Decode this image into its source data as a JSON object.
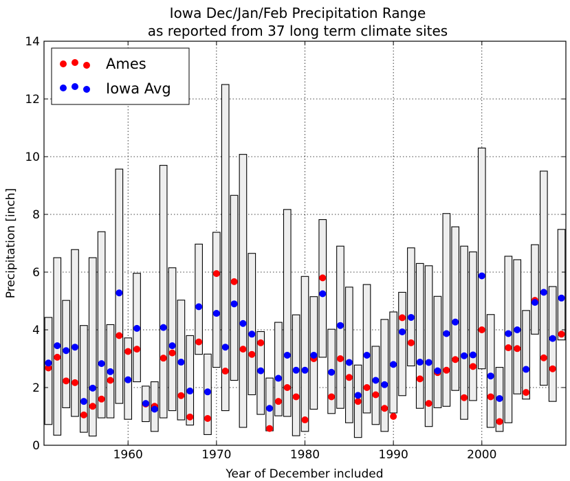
{
  "chart_data": {
    "type": "scatter",
    "title": "Iowa Dec/Jan/Feb Precipitation Range",
    "subtitle": "as reported from 37 long term climate sites",
    "xlabel": "Year of December included",
    "ylabel": "Precipitation [inch]",
    "xlim": [
      1950.5,
      2009.5
    ],
    "ylim": [
      0,
      14
    ],
    "xticks": [
      1960,
      1970,
      1980,
      1990,
      2000
    ],
    "yticks": [
      0,
      2,
      4,
      6,
      8,
      10,
      12,
      14
    ],
    "grid": true,
    "legend_position": "top-left",
    "colors": {
      "ames": "#ff0000",
      "iowa_avg": "#0000ff",
      "range_fill": "#eeeeee",
      "range_edge": "#000000"
    },
    "years": [
      1951,
      1952,
      1953,
      1954,
      1955,
      1956,
      1957,
      1958,
      1959,
      1960,
      1961,
      1962,
      1963,
      1964,
      1965,
      1966,
      1967,
      1968,
      1969,
      1970,
      1971,
      1972,
      1973,
      1974,
      1975,
      1976,
      1977,
      1978,
      1979,
      1980,
      1981,
      1982,
      1983,
      1984,
      1985,
      1986,
      1987,
      1988,
      1989,
      1990,
      1991,
      1992,
      1993,
      1994,
      1995,
      1996,
      1997,
      1998,
      1999,
      2000,
      2001,
      2002,
      2003,
      2004,
      2005,
      2006,
      2007,
      2008,
      2009
    ],
    "range_low": [
      0.72,
      0.35,
      1.3,
      1.0,
      0.45,
      0.32,
      0.95,
      0.95,
      1.45,
      0.9,
      2.2,
      0.82,
      0.48,
      0.95,
      1.2,
      0.88,
      0.7,
      3.15,
      0.37,
      2.7,
      1.2,
      2.25,
      0.62,
      1.75,
      1.07,
      0.5,
      1.02,
      1.0,
      0.33,
      0.48,
      1.25,
      3.05,
      1.1,
      1.28,
      0.78,
      0.27,
      1.12,
      0.72,
      0.48,
      1.12,
      1.72,
      2.75,
      1.28,
      0.65,
      1.3,
      1.35,
      1.9,
      0.9,
      1.55,
      2.65,
      0.62,
      0.48,
      0.78,
      1.78,
      1.6,
      3.85,
      2.08,
      1.52,
      3.65
    ],
    "range_high": [
      4.43,
      6.5,
      5.02,
      6.78,
      4.15,
      6.5,
      7.4,
      4.18,
      9.57,
      3.72,
      5.96,
      2.05,
      2.2,
      9.7,
      6.15,
      5.03,
      3.8,
      6.97,
      3.16,
      7.38,
      12.5,
      8.66,
      10.08,
      6.65,
      3.94,
      2.33,
      4.26,
      8.17,
      4.52,
      5.85,
      5.15,
      7.82,
      4.02,
      6.9,
      5.48,
      2.78,
      5.57,
      3.43,
      4.36,
      4.62,
      5.3,
      6.84,
      6.3,
      6.22,
      5.16,
      8.03,
      7.57,
      6.9,
      6.7,
      10.3,
      4.53,
      2.7,
      6.55,
      6.43,
      4.67,
      6.95,
      9.5,
      5.5,
      7.48
    ],
    "series": [
      {
        "name": "Ames",
        "values": [
          2.68,
          3.05,
          2.23,
          2.17,
          1.05,
          1.35,
          1.6,
          2.25,
          3.8,
          3.25,
          3.33,
          1.43,
          1.35,
          3.02,
          3.2,
          1.72,
          0.98,
          3.58,
          0.93,
          5.95,
          2.57,
          5.67,
          3.33,
          3.15,
          3.55,
          0.58,
          1.52,
          2.0,
          1.68,
          0.88,
          3.0,
          5.8,
          1.68,
          3.0,
          2.35,
          1.52,
          2.0,
          1.75,
          1.28,
          1.0,
          4.42,
          3.55,
          2.3,
          1.45,
          2.52,
          2.6,
          2.97,
          1.65,
          2.73,
          4.0,
          1.68,
          0.82,
          3.38,
          3.35,
          1.83,
          5.02,
          3.03,
          2.65,
          3.85
        ]
      },
      {
        "name": "Iowa Avg",
        "values": [
          2.85,
          3.45,
          3.28,
          3.4,
          1.52,
          1.98,
          2.83,
          2.55,
          5.28,
          2.27,
          4.05,
          1.45,
          1.25,
          4.08,
          3.45,
          2.88,
          1.88,
          4.8,
          1.85,
          4.57,
          3.4,
          4.9,
          4.22,
          3.85,
          2.58,
          1.28,
          2.32,
          3.12,
          2.6,
          2.6,
          3.12,
          5.25,
          2.53,
          4.15,
          2.87,
          1.73,
          3.12,
          2.25,
          2.1,
          2.8,
          3.93,
          4.43,
          2.88,
          2.87,
          2.58,
          3.87,
          4.27,
          3.1,
          3.13,
          5.87,
          2.4,
          1.62,
          3.87,
          4.0,
          2.63,
          4.95,
          5.3,
          3.7,
          5.1
        ]
      }
    ]
  }
}
